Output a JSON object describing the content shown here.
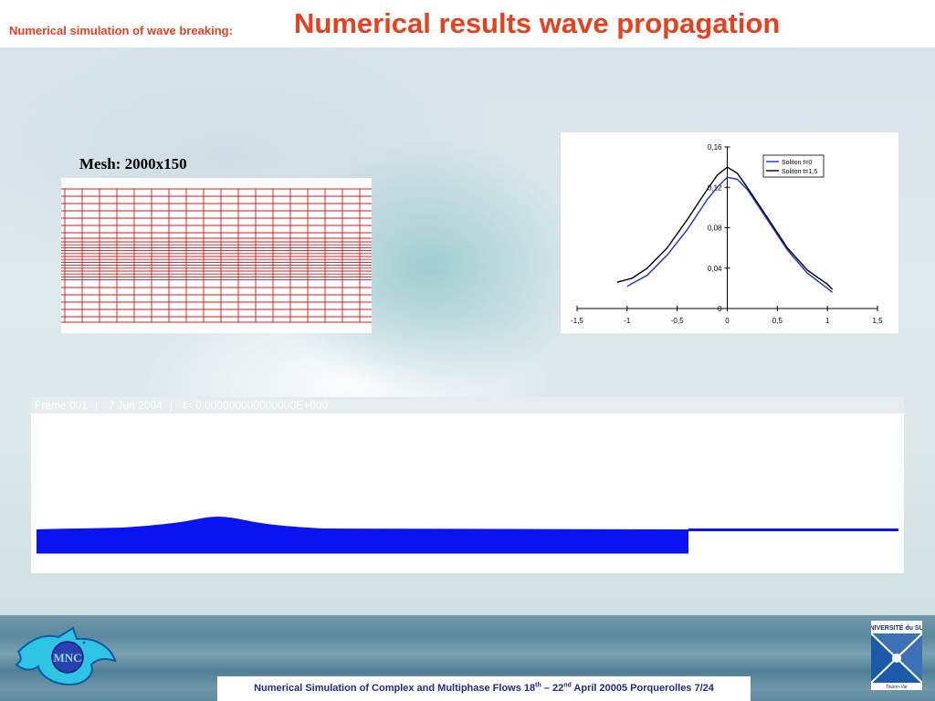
{
  "header": {
    "subtitle": "Numerical simulation of wave breaking:",
    "title": "Numerical results wave propagation"
  },
  "mesh": {
    "label": "Mesh: 2000x150"
  },
  "chart_data": {
    "type": "line",
    "title": "",
    "xlabel": "",
    "ylabel": "",
    "xlim": [
      -1.5,
      1.5
    ],
    "ylim": [
      0,
      0.16
    ],
    "x_ticks": [
      "-1,5",
      "-1",
      "-0,5",
      "0",
      "0,5",
      "1",
      "1,5"
    ],
    "y_ticks": [
      "0",
      "0,04",
      "0,08",
      "0,12",
      "0,16"
    ],
    "legend_position": "top-right",
    "grid": false,
    "series": [
      {
        "name": "Soliton t=0",
        "color": "#1a2fd6",
        "x": [
          -1.0,
          -0.8,
          -0.6,
          -0.4,
          -0.2,
          -0.1,
          0.0,
          0.1,
          0.2,
          0.4,
          0.6,
          0.8,
          1.0,
          1.05
        ],
        "y": [
          0.022,
          0.033,
          0.053,
          0.078,
          0.108,
          0.12,
          0.13,
          0.128,
          0.118,
          0.088,
          0.058,
          0.035,
          0.02,
          0.016
        ]
      },
      {
        "name": "Soliton t=1,5",
        "color": "#000000",
        "x": [
          -1.1,
          -0.95,
          -0.8,
          -0.6,
          -0.4,
          -0.2,
          -0.1,
          0.0,
          0.1,
          0.2,
          0.4,
          0.6,
          0.8,
          1.0,
          1.05
        ],
        "y": [
          0.026,
          0.03,
          0.04,
          0.06,
          0.088,
          0.118,
          0.132,
          0.14,
          0.134,
          0.12,
          0.09,
          0.06,
          0.038,
          0.024,
          0.019
        ]
      }
    ]
  },
  "simulation": {
    "frame": "Frame 001",
    "date": "7 Jun 2004",
    "time": "t=  0.000000000000000E+000",
    "fill_color": "#0a14f0"
  },
  "footer": {
    "text_a": "Numerical Simulation of Complex and Multiphase Flows   18",
    "sup_a": "th",
    "text_b": " – 22",
    "sup_b": "nd",
    "text_c": "  April 20005  Porquerolles      7/24"
  },
  "logos": {
    "left": "MNC",
    "right": "UNIVERSITÉ du SUD",
    "right_sub": "Toulon-Var"
  }
}
